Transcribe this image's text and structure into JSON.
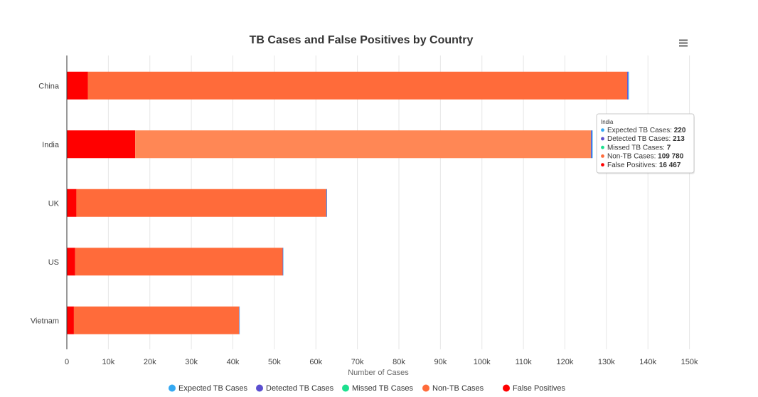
{
  "chart_data": {
    "type": "bar",
    "orientation": "horizontal",
    "stacked": true,
    "title": "TB Cases and False Positives by Country",
    "xlabel": "Number of Cases",
    "ylabel": "",
    "categories": [
      "China",
      "India",
      "UK",
      "US",
      "Vietnam"
    ],
    "xlim": [
      0,
      150000
    ],
    "tick_values": [
      0,
      10000,
      20000,
      30000,
      40000,
      50000,
      60000,
      70000,
      80000,
      90000,
      100000,
      110000,
      120000,
      130000,
      140000,
      150000
    ],
    "tick_labels": [
      "0",
      "10k",
      "20k",
      "30k",
      "40k",
      "50k",
      "60k",
      "70k",
      "80k",
      "90k",
      "100k",
      "110k",
      "120k",
      "130k",
      "140k",
      "150k"
    ],
    "grid": true,
    "legend_position": "bottom",
    "series": [
      {
        "name": "False Positives",
        "color": "#ff0000",
        "values": [
          5100,
          16467,
          2300,
          2000,
          1700
        ]
      },
      {
        "name": "Non-TB Cases",
        "color": "#ff6b3a",
        "values": [
          129900,
          109780,
          60200,
          50000,
          39800
        ]
      },
      {
        "name": "Missed TB Cases",
        "color": "#1de08f",
        "values": [
          8,
          7,
          4,
          3,
          3
        ]
      },
      {
        "name": "Detected TB Cases",
        "color": "#5b4fcf",
        "values": [
          200,
          213,
          95,
          80,
          70
        ]
      },
      {
        "name": "Expected TB Cases",
        "color": "#35a9f2",
        "values": [
          208,
          220,
          99,
          83,
          73
        ]
      }
    ],
    "legend": [
      {
        "name": "Expected TB Cases",
        "color": "#35a9f2"
      },
      {
        "name": "Detected TB Cases",
        "color": "#5b4fcf"
      },
      {
        "name": "Missed TB Cases",
        "color": "#1de08f"
      },
      {
        "name": "Non-TB Cases",
        "color": "#ff6b3a"
      },
      {
        "name": "False Positives",
        "color": "#ff0000"
      }
    ],
    "highlighted_category": "India",
    "tooltip": {
      "title": "India",
      "items": [
        {
          "name": "Expected TB Cases",
          "value": "220",
          "color": "#35a9f2"
        },
        {
          "name": "Detected TB Cases",
          "value": "213",
          "color": "#5b4fcf"
        },
        {
          "name": "Missed TB Cases",
          "value": "7",
          "color": "#1de08f"
        },
        {
          "name": "Non-TB Cases",
          "value": "109 780",
          "color": "#ff6b3a"
        },
        {
          "name": "False Positives",
          "value": "16 467",
          "color": "#ff0000"
        }
      ]
    }
  },
  "menu": {
    "icon": "hamburger-menu-icon"
  }
}
